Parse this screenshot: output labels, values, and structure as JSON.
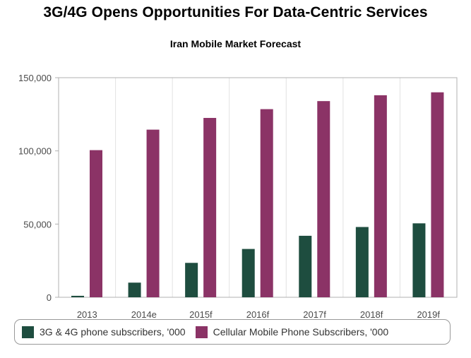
{
  "chart_data": {
    "type": "bar",
    "title": "3G/4G Opens Opportunities For Data-Centric Services",
    "subtitle": "Iran Mobile Market Forecast",
    "categories": [
      "2013",
      "2014e",
      "2015f",
      "2016f",
      "2017f",
      "2018f",
      "2019f"
    ],
    "series": [
      {
        "name": "3G & 4G phone subscribers, '000",
        "color": "#1e4d3f",
        "values": [
          1000,
          10000,
          23500,
          33000,
          42000,
          48000,
          50500
        ]
      },
      {
        "name": "Cellular Mobile Phone Subscribers, '000",
        "color": "#8b3366",
        "values": [
          100500,
          114500,
          122500,
          128500,
          134000,
          138000,
          140000
        ]
      }
    ],
    "ylim": [
      0,
      150000
    ],
    "yticks": [
      0,
      50000,
      100000,
      150000
    ],
    "ytick_labels": [
      "0",
      "50,000",
      "100,000",
      "150,000"
    ],
    "grid": "vertical",
    "legend_position": "bottom"
  }
}
